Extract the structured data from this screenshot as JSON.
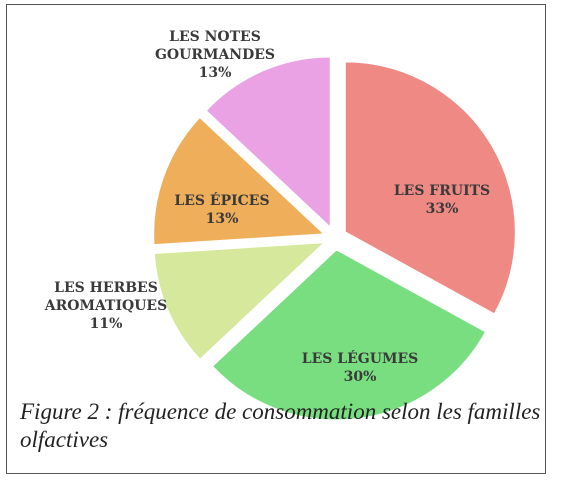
{
  "chart_data": {
    "type": "pie",
    "categories": [
      "LES FRUITS",
      "LES LÉGUMES",
      "LES HERBES AROMATIQUES",
      "LES ÉPICES",
      "LES NOTES GOURMANDES"
    ],
    "values": [
      33,
      30,
      11,
      13,
      13
    ],
    "value_labels": [
      "33%",
      "30%",
      "11%",
      "13%",
      "13%"
    ],
    "colors": [
      "#ee8984",
      "#78de80",
      "#d6e89c",
      "#eeae5a",
      "#eaa2e4"
    ],
    "caption": "Figure 2 : fréquence de consommation selon les familles olfactives"
  }
}
